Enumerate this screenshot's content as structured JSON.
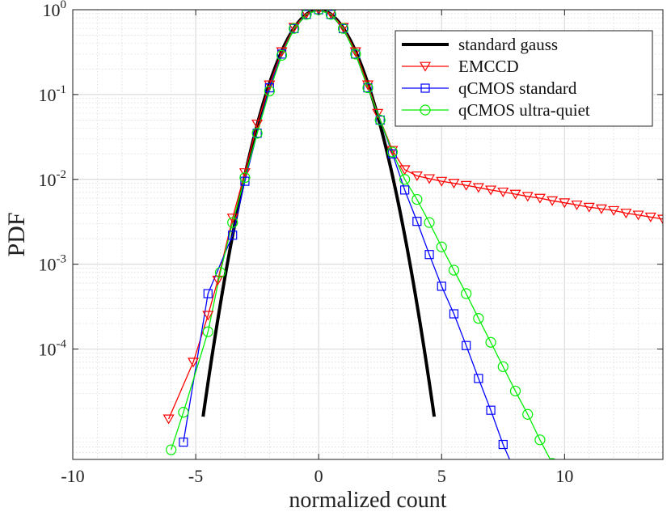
{
  "chart_data": {
    "type": "line",
    "xlabel": "normalized count",
    "ylabel": "PDF",
    "x_scale": "linear",
    "y_scale": "log",
    "xlim": [
      -10,
      14
    ],
    "ylim": [
      5e-06,
      1
    ],
    "grid": true,
    "minor_grid": true,
    "legend_position": "top-right",
    "x_ticks": [
      "-10",
      "-5",
      "0",
      "5",
      "10"
    ],
    "x_tick_values": [
      -10,
      -5,
      0,
      5,
      10
    ],
    "y_ticks": [
      {
        "base": "10",
        "exp": "0",
        "value": 1
      },
      {
        "base": "10",
        "exp": "-1",
        "value": 0.1
      },
      {
        "base": "10",
        "exp": "-2",
        "value": 0.01
      },
      {
        "base": "10",
        "exp": "-3",
        "value": 0.001
      },
      {
        "base": "10",
        "exp": "-4",
        "value": 0.0001
      }
    ],
    "series": [
      {
        "name": "standard gauss",
        "color": "#000000",
        "marker": "none",
        "curve": "gaussian",
        "x_range": [
          -4.7,
          4.7
        ]
      },
      {
        "name": "EMCCD",
        "color": "#ff0000",
        "marker": "triangle-down",
        "x": [
          -6.1,
          -5.1,
          -4.5,
          -4.1,
          -3.5,
          -3.0,
          -2.5,
          -2.0,
          -1.5,
          -1.0,
          -0.5,
          0.0,
          0.5,
          1.0,
          1.5,
          2.0,
          2.4,
          3.0,
          3.5,
          4.0,
          4.5,
          5.0,
          5.5,
          6.0,
          6.5,
          7.0,
          7.5,
          8.0,
          8.5,
          9.0,
          9.5,
          10.0,
          10.5,
          11.0,
          11.5,
          12.0,
          12.5,
          13.0,
          13.5,
          14.0
        ],
        "y": [
          1.5e-05,
          7e-05,
          0.00025,
          0.00065,
          0.0035,
          0.012,
          0.045,
          0.13,
          0.32,
          0.62,
          0.9,
          1.0,
          0.9,
          0.62,
          0.32,
          0.13,
          0.06,
          0.022,
          0.013,
          0.011,
          0.0102,
          0.0095,
          0.009,
          0.0085,
          0.008,
          0.0075,
          0.0071,
          0.0067,
          0.0063,
          0.006,
          0.0056,
          0.0053,
          0.005,
          0.0047,
          0.0045,
          0.0043,
          0.004,
          0.0038,
          0.0036,
          0.0034
        ]
      },
      {
        "name": "qCMOS standard",
        "color": "#0000ff",
        "marker": "square",
        "x": [
          -5.5,
          -4.5,
          -3.5,
          -3.0,
          -2.5,
          -2.0,
          -1.5,
          -1.0,
          -0.5,
          0.0,
          0.5,
          1.0,
          1.5,
          2.0,
          2.5,
          3.0,
          3.5,
          4.0,
          4.5,
          5.0,
          5.5,
          6.0,
          6.5,
          7.0,
          7.5,
          8.0
        ],
        "y": [
          8e-06,
          0.00045,
          0.0022,
          0.0095,
          0.035,
          0.12,
          0.3,
          0.6,
          0.88,
          1.0,
          0.88,
          0.6,
          0.3,
          0.12,
          0.05,
          0.02,
          0.0075,
          0.0032,
          0.0013,
          0.00055,
          0.00026,
          0.00011,
          4.5e-05,
          1.9e-05,
          7.5e-06,
          3.5e-06
        ]
      },
      {
        "name": "qCMOS ultra-quiet",
        "color": "#00ee00",
        "marker": "circle",
        "x": [
          -6.0,
          -5.5,
          -4.5,
          -4.0,
          -3.5,
          -3.0,
          -2.5,
          -2.0,
          -1.5,
          -1.0,
          -0.5,
          0.0,
          0.5,
          1.0,
          1.5,
          2.0,
          2.5,
          3.0,
          3.5,
          4.0,
          4.5,
          5.0,
          5.5,
          6.0,
          6.5,
          7.0,
          7.5,
          8.0,
          8.5,
          9.0,
          9.5
        ],
        "y": [
          6.5e-06,
          1.8e-05,
          0.00016,
          0.0008,
          0.0031,
          0.0105,
          0.035,
          0.11,
          0.29,
          0.6,
          0.88,
          1.0,
          0.88,
          0.6,
          0.3,
          0.12,
          0.05,
          0.021,
          0.01,
          0.0058,
          0.0031,
          0.0016,
          0.00085,
          0.00045,
          0.00023,
          0.00012,
          6.2e-05,
          3.2e-05,
          1.7e-05,
          8.5e-06,
          4.5e-06
        ]
      }
    ]
  }
}
